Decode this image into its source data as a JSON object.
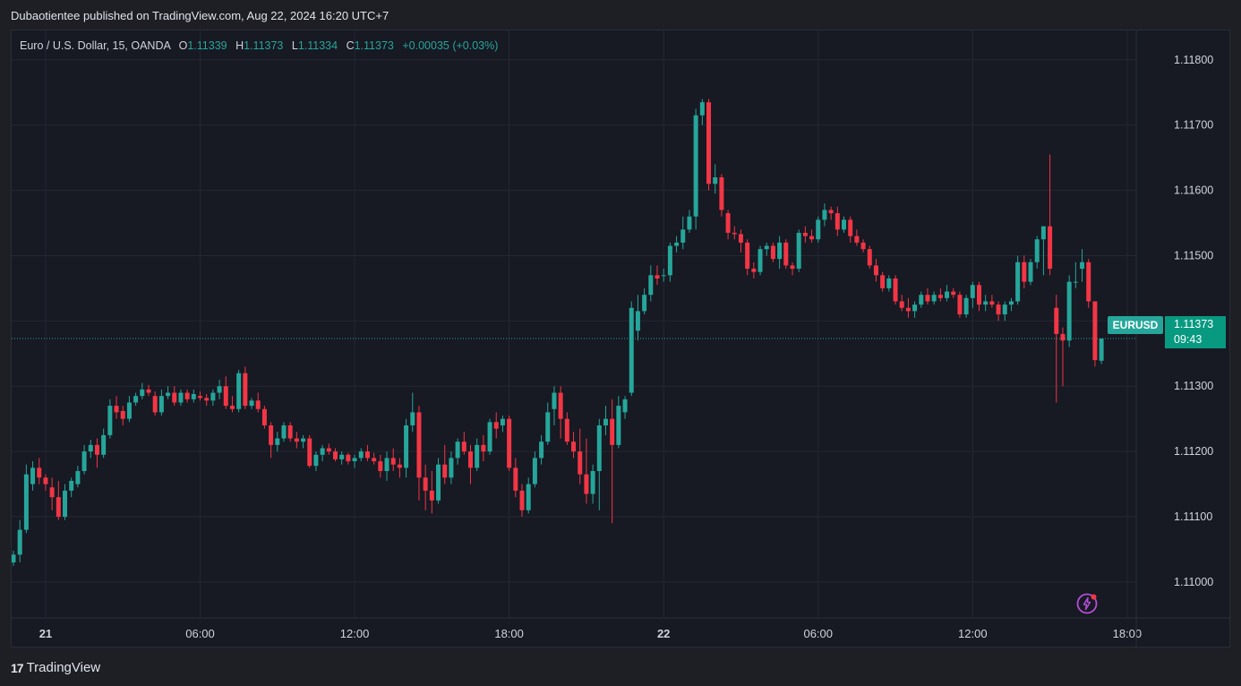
{
  "header": {
    "publisher_line": "Dubaotientee published on TradingView.com, Aug 22, 2024 16:20 UTC+7"
  },
  "legend": {
    "title": "Euro / U.S. Dollar, 15, OANDA",
    "o_label": "O",
    "o_value": "1.11339",
    "h_label": "H",
    "h_value": "1.11373",
    "l_label": "L",
    "l_value": "1.11334",
    "c_label": "C",
    "c_value": "1.11373",
    "change": "+0.00035 (+0.03%)"
  },
  "price_marker": {
    "symbol": "EURUSD",
    "price": "1.11373",
    "countdown": "09:43"
  },
  "footer": {
    "brand": "TradingView",
    "logo_mark": "17"
  },
  "colors": {
    "up": "#26a69a",
    "down": "#f23645",
    "background": "#171923",
    "grid": "#252833"
  },
  "icons": {
    "flash": "flash-icon",
    "logo": "tradingview-logo-icon"
  },
  "chart_data": {
    "type": "candlestick",
    "symbol": "EURUSD",
    "timeframe": "15",
    "y_ticks": [
      1.118,
      1.117,
      1.116,
      1.115,
      1.114,
      1.113,
      1.112,
      1.111,
      1.11
    ],
    "y_tick_labels": [
      "1.11800",
      "1.11700",
      "1.11600",
      "1.11500",
      "1.11400",
      "1.11300",
      "1.11200",
      "1.11100",
      "1.11000"
    ],
    "x_ticks": [
      {
        "label": "21",
        "bold": true,
        "bar": 5
      },
      {
        "label": "06:00",
        "bold": false,
        "bar": 29
      },
      {
        "label": "12:00",
        "bold": false,
        "bar": 53
      },
      {
        "label": "18:00",
        "bold": false,
        "bar": 77
      },
      {
        "label": "22",
        "bold": true,
        "bar": 101
      },
      {
        "label": "06:00",
        "bold": false,
        "bar": 125
      },
      {
        "label": "12:00",
        "bold": false,
        "bar": 149
      },
      {
        "label": "18:00",
        "bold": false,
        "bar": 173
      }
    ],
    "last_price": 1.11373,
    "candles": [
      [
        1.1103,
        1.11048,
        1.11025,
        1.11042
      ],
      [
        1.11042,
        1.11095,
        1.1103,
        1.1108
      ],
      [
        1.1108,
        1.1118,
        1.11075,
        1.11165
      ],
      [
        1.1115,
        1.11185,
        1.1114,
        1.11175
      ],
      [
        1.11175,
        1.1119,
        1.1115,
        1.1116
      ],
      [
        1.1116,
        1.11165,
        1.1114,
        1.1115
      ],
      [
        1.11145,
        1.1116,
        1.1111,
        1.1113
      ],
      [
        1.1113,
        1.11155,
        1.11095,
        1.111
      ],
      [
        1.111,
        1.1115,
        1.11095,
        1.1114
      ],
      [
        1.1114,
        1.1116,
        1.1113,
        1.11155
      ],
      [
        1.1115,
        1.11178,
        1.11145,
        1.1117
      ],
      [
        1.1117,
        1.1121,
        1.11165,
        1.112
      ],
      [
        1.112,
        1.11218,
        1.1119,
        1.1121
      ],
      [
        1.1121,
        1.1122,
        1.11175,
        1.11195
      ],
      [
        1.11195,
        1.11235,
        1.1119,
        1.11225
      ],
      [
        1.11225,
        1.1128,
        1.1122,
        1.1127
      ],
      [
        1.1127,
        1.11285,
        1.1125,
        1.1126
      ],
      [
        1.11262,
        1.1127,
        1.1124,
        1.1125
      ],
      [
        1.1125,
        1.11285,
        1.11245,
        1.11275
      ],
      [
        1.11275,
        1.1129,
        1.1127,
        1.11285
      ],
      [
        1.11285,
        1.11305,
        1.1128,
        1.11295
      ],
      [
        1.11295,
        1.11302,
        1.11285,
        1.1129
      ],
      [
        1.11285,
        1.11292,
        1.11255,
        1.1126
      ],
      [
        1.1126,
        1.11295,
        1.11255,
        1.11285
      ],
      [
        1.11285,
        1.113,
        1.1128,
        1.1129
      ],
      [
        1.1129,
        1.113,
        1.1127,
        1.11275
      ],
      [
        1.11275,
        1.11295,
        1.1127,
        1.1129
      ],
      [
        1.1129,
        1.11295,
        1.11275,
        1.1128
      ],
      [
        1.1128,
        1.11295,
        1.11275,
        1.11288
      ],
      [
        1.11285,
        1.11292,
        1.11278,
        1.11282
      ],
      [
        1.11282,
        1.11288,
        1.1127,
        1.11278
      ],
      [
        1.11278,
        1.11295,
        1.1127,
        1.1129
      ],
      [
        1.1129,
        1.1131,
        1.1128,
        1.113
      ],
      [
        1.113,
        1.11315,
        1.11265,
        1.1127
      ],
      [
        1.1127,
        1.11285,
        1.1126,
        1.11265
      ],
      [
        1.11265,
        1.11325,
        1.1126,
        1.1132
      ],
      [
        1.1132,
        1.1133,
        1.11265,
        1.1127
      ],
      [
        1.1127,
        1.11282,
        1.11265,
        1.11278
      ],
      [
        1.11278,
        1.1129,
        1.1126,
        1.11265
      ],
      [
        1.11265,
        1.1127,
        1.11235,
        1.1124
      ],
      [
        1.1124,
        1.11245,
        1.1119,
        1.1121
      ],
      [
        1.1121,
        1.1123,
        1.112,
        1.1122
      ],
      [
        1.1122,
        1.11245,
        1.11215,
        1.1124
      ],
      [
        1.1124,
        1.11245,
        1.11215,
        1.1122
      ],
      [
        1.1122,
        1.1123,
        1.11205,
        1.11215
      ],
      [
        1.11215,
        1.11225,
        1.11205,
        1.1122
      ],
      [
        1.1122,
        1.11225,
        1.11175,
        1.11178
      ],
      [
        1.11178,
        1.112,
        1.1117,
        1.11195
      ],
      [
        1.11195,
        1.1121,
        1.11185,
        1.11205
      ],
      [
        1.11205,
        1.11212,
        1.11195,
        1.112
      ],
      [
        1.112,
        1.11205,
        1.11185,
        1.11188
      ],
      [
        1.11188,
        1.112,
        1.1118,
        1.11195
      ],
      [
        1.11195,
        1.11198,
        1.1118,
        1.11185
      ],
      [
        1.11185,
        1.11195,
        1.11175,
        1.1119
      ],
      [
        1.1119,
        1.11205,
        1.11185,
        1.112
      ],
      [
        1.112,
        1.1121,
        1.11185,
        1.1119
      ],
      [
        1.1119,
        1.11198,
        1.1118,
        1.11185
      ],
      [
        1.11185,
        1.11195,
        1.1116,
        1.1117
      ],
      [
        1.1117,
        1.112,
        1.11155,
        1.1119
      ],
      [
        1.1119,
        1.11205,
        1.1117,
        1.1118
      ],
      [
        1.1118,
        1.1119,
        1.1116,
        1.11175
      ],
      [
        1.11175,
        1.1125,
        1.1116,
        1.1124
      ],
      [
        1.1124,
        1.1129,
        1.1123,
        1.1126
      ],
      [
        1.1126,
        1.1127,
        1.11125,
        1.1116
      ],
      [
        1.1116,
        1.1118,
        1.1111,
        1.1114
      ],
      [
        1.1114,
        1.1117,
        1.11105,
        1.11125
      ],
      [
        1.11125,
        1.1119,
        1.1112,
        1.1118
      ],
      [
        1.1118,
        1.1121,
        1.1115,
        1.1116
      ],
      [
        1.1116,
        1.112,
        1.1115,
        1.1119
      ],
      [
        1.1119,
        1.1122,
        1.1118,
        1.11215
      ],
      [
        1.11215,
        1.1123,
        1.11195,
        1.112
      ],
      [
        1.112,
        1.1121,
        1.1115,
        1.11175
      ],
      [
        1.11175,
        1.1122,
        1.1117,
        1.1121
      ],
      [
        1.1121,
        1.11225,
        1.11185,
        1.112
      ],
      [
        1.112,
        1.1125,
        1.11195,
        1.11245
      ],
      [
        1.11245,
        1.1126,
        1.1122,
        1.11235
      ],
      [
        1.1124,
        1.11255,
        1.1123,
        1.1125
      ],
      [
        1.1125,
        1.11255,
        1.1117,
        1.11175
      ],
      [
        1.11175,
        1.1119,
        1.1113,
        1.1114
      ],
      [
        1.1114,
        1.1115,
        1.111,
        1.1111
      ],
      [
        1.1111,
        1.1116,
        1.11105,
        1.1115
      ],
      [
        1.1115,
        1.112,
        1.11145,
        1.1119
      ],
      [
        1.1119,
        1.11225,
        1.1118,
        1.11215
      ],
      [
        1.11215,
        1.11275,
        1.1121,
        1.1126
      ],
      [
        1.11265,
        1.113,
        1.1124,
        1.1129
      ],
      [
        1.1129,
        1.113,
        1.1122,
        1.1125
      ],
      [
        1.1125,
        1.1126,
        1.1121,
        1.11215
      ],
      [
        1.11215,
        1.1123,
        1.1119,
        1.112
      ],
      [
        1.112,
        1.11235,
        1.1115,
        1.11165
      ],
      [
        1.11165,
        1.1122,
        1.1112,
        1.11135
      ],
      [
        1.11135,
        1.1118,
        1.1112,
        1.1117
      ],
      [
        1.1117,
        1.1125,
        1.1111,
        1.1124
      ],
      [
        1.1124,
        1.1127,
        1.11225,
        1.1125
      ],
      [
        1.1125,
        1.1128,
        1.1109,
        1.1121
      ],
      [
        1.1121,
        1.11285,
        1.11205,
        1.1127
      ],
      [
        1.1126,
        1.11285,
        1.1125,
        1.1128
      ],
      [
        1.1129,
        1.1143,
        1.11285,
        1.1142
      ],
      [
        1.11385,
        1.1144,
        1.1137,
        1.11415
      ],
      [
        1.11415,
        1.1145,
        1.1141,
        1.1144
      ],
      [
        1.1144,
        1.11485,
        1.1143,
        1.1147
      ],
      [
        1.1147,
        1.11485,
        1.11455,
        1.11465
      ],
      [
        1.1147,
        1.1148,
        1.1146,
        1.1147
      ],
      [
        1.1147,
        1.1152,
        1.1146,
        1.11515
      ],
      [
        1.11515,
        1.1153,
        1.11505,
        1.1152
      ],
      [
        1.1152,
        1.1156,
        1.1151,
        1.1154
      ],
      [
        1.1154,
        1.1157,
        1.11535,
        1.1156
      ],
      [
        1.1156,
        1.11725,
        1.1154,
        1.11715
      ],
      [
        1.11715,
        1.1174,
        1.117,
        1.11735
      ],
      [
        1.11735,
        1.1174,
        1.116,
        1.1161
      ],
      [
        1.1161,
        1.1164,
        1.11595,
        1.1162
      ],
      [
        1.1162,
        1.11625,
        1.1156,
        1.1157
      ],
      [
        1.11565,
        1.1157,
        1.11525,
        1.11535
      ],
      [
        1.11535,
        1.11545,
        1.11525,
        1.11533
      ],
      [
        1.11533,
        1.1154,
        1.11505,
        1.1152
      ],
      [
        1.1152,
        1.11525,
        1.1147,
        1.1148
      ],
      [
        1.1148,
        1.1149,
        1.11465,
        1.11475
      ],
      [
        1.11475,
        1.11515,
        1.1147,
        1.1151
      ],
      [
        1.1151,
        1.1152,
        1.115,
        1.11515
      ],
      [
        1.11515,
        1.1152,
        1.1149,
        1.11495
      ],
      [
        1.11495,
        1.1153,
        1.1148,
        1.1152
      ],
      [
        1.1152,
        1.11525,
        1.1148,
        1.11485
      ],
      [
        1.11485,
        1.1149,
        1.1147,
        1.1148
      ],
      [
        1.1148,
        1.1154,
        1.11475,
        1.11535
      ],
      [
        1.11535,
        1.11545,
        1.1152,
        1.1153
      ],
      [
        1.1153,
        1.1154,
        1.1152,
        1.11525
      ],
      [
        1.11525,
        1.1156,
        1.1152,
        1.11555
      ],
      [
        1.11555,
        1.1158,
        1.11545,
        1.1157
      ],
      [
        1.1157,
        1.11575,
        1.11555,
        1.11565
      ],
      [
        1.11565,
        1.11575,
        1.1153,
        1.1154
      ],
      [
        1.1154,
        1.1156,
        1.11535,
        1.11555
      ],
      [
        1.11555,
        1.1156,
        1.1152,
        1.1153
      ],
      [
        1.1153,
        1.1154,
        1.11515,
        1.1152
      ],
      [
        1.1152,
        1.11525,
        1.11505,
        1.1151
      ],
      [
        1.1151,
        1.11515,
        1.1148,
        1.11485
      ],
      [
        1.11485,
        1.11495,
        1.1146,
        1.1147
      ],
      [
        1.1147,
        1.11475,
        1.11445,
        1.1145
      ],
      [
        1.1145,
        1.1147,
        1.11445,
        1.11465
      ],
      [
        1.11465,
        1.1147,
        1.11425,
        1.1143
      ],
      [
        1.1143,
        1.1144,
        1.11415,
        1.1142
      ],
      [
        1.1142,
        1.11435,
        1.11405,
        1.11415
      ],
      [
        1.11415,
        1.1143,
        1.11405,
        1.11425
      ],
      [
        1.11425,
        1.11445,
        1.1142,
        1.1144
      ],
      [
        1.1144,
        1.1145,
        1.11425,
        1.1143
      ],
      [
        1.1143,
        1.11445,
        1.11425,
        1.1144
      ],
      [
        1.1144,
        1.1145,
        1.1143,
        1.11435
      ],
      [
        1.11435,
        1.11455,
        1.1143,
        1.11445
      ],
      [
        1.11445,
        1.1145,
        1.11435,
        1.1144
      ],
      [
        1.1144,
        1.11445,
        1.11405,
        1.1141
      ],
      [
        1.1141,
        1.1144,
        1.11405,
        1.11435
      ],
      [
        1.11435,
        1.1146,
        1.1142,
        1.11455
      ],
      [
        1.11455,
        1.1146,
        1.11415,
        1.11425
      ],
      [
        1.11425,
        1.1144,
        1.11415,
        1.1143
      ],
      [
        1.1143,
        1.1144,
        1.1142,
        1.11425
      ],
      [
        1.11425,
        1.1143,
        1.114,
        1.1141
      ],
      [
        1.1141,
        1.1143,
        1.114,
        1.11425
      ],
      [
        1.11425,
        1.11435,
        1.11415,
        1.1143
      ],
      [
        1.1143,
        1.115,
        1.11425,
        1.1149
      ],
      [
        1.1149,
        1.115,
        1.1145,
        1.1146
      ],
      [
        1.1146,
        1.11495,
        1.11455,
        1.1149
      ],
      [
        1.1149,
        1.1153,
        1.1148,
        1.11525
      ],
      [
        1.11525,
        1.11545,
        1.1147,
        1.11545
      ],
      [
        1.11545,
        1.11655,
        1.1147,
        1.1148
      ],
      [
        1.1142,
        1.1144,
        1.11275,
        1.1138
      ],
      [
        1.1138,
        1.1139,
        1.113,
        1.1137
      ],
      [
        1.1137,
        1.1147,
        1.1136,
        1.1146
      ],
      [
        1.1146,
        1.1149,
        1.1145,
        1.1146
      ],
      [
        1.1148,
        1.1151,
        1.1146,
        1.1149
      ],
      [
        1.1149,
        1.11495,
        1.1142,
        1.1143
      ],
      [
        1.1143,
        1.1143,
        1.1133,
        1.1134
      ],
      [
        1.11339,
        1.11373,
        1.11334,
        1.11373
      ]
    ]
  }
}
